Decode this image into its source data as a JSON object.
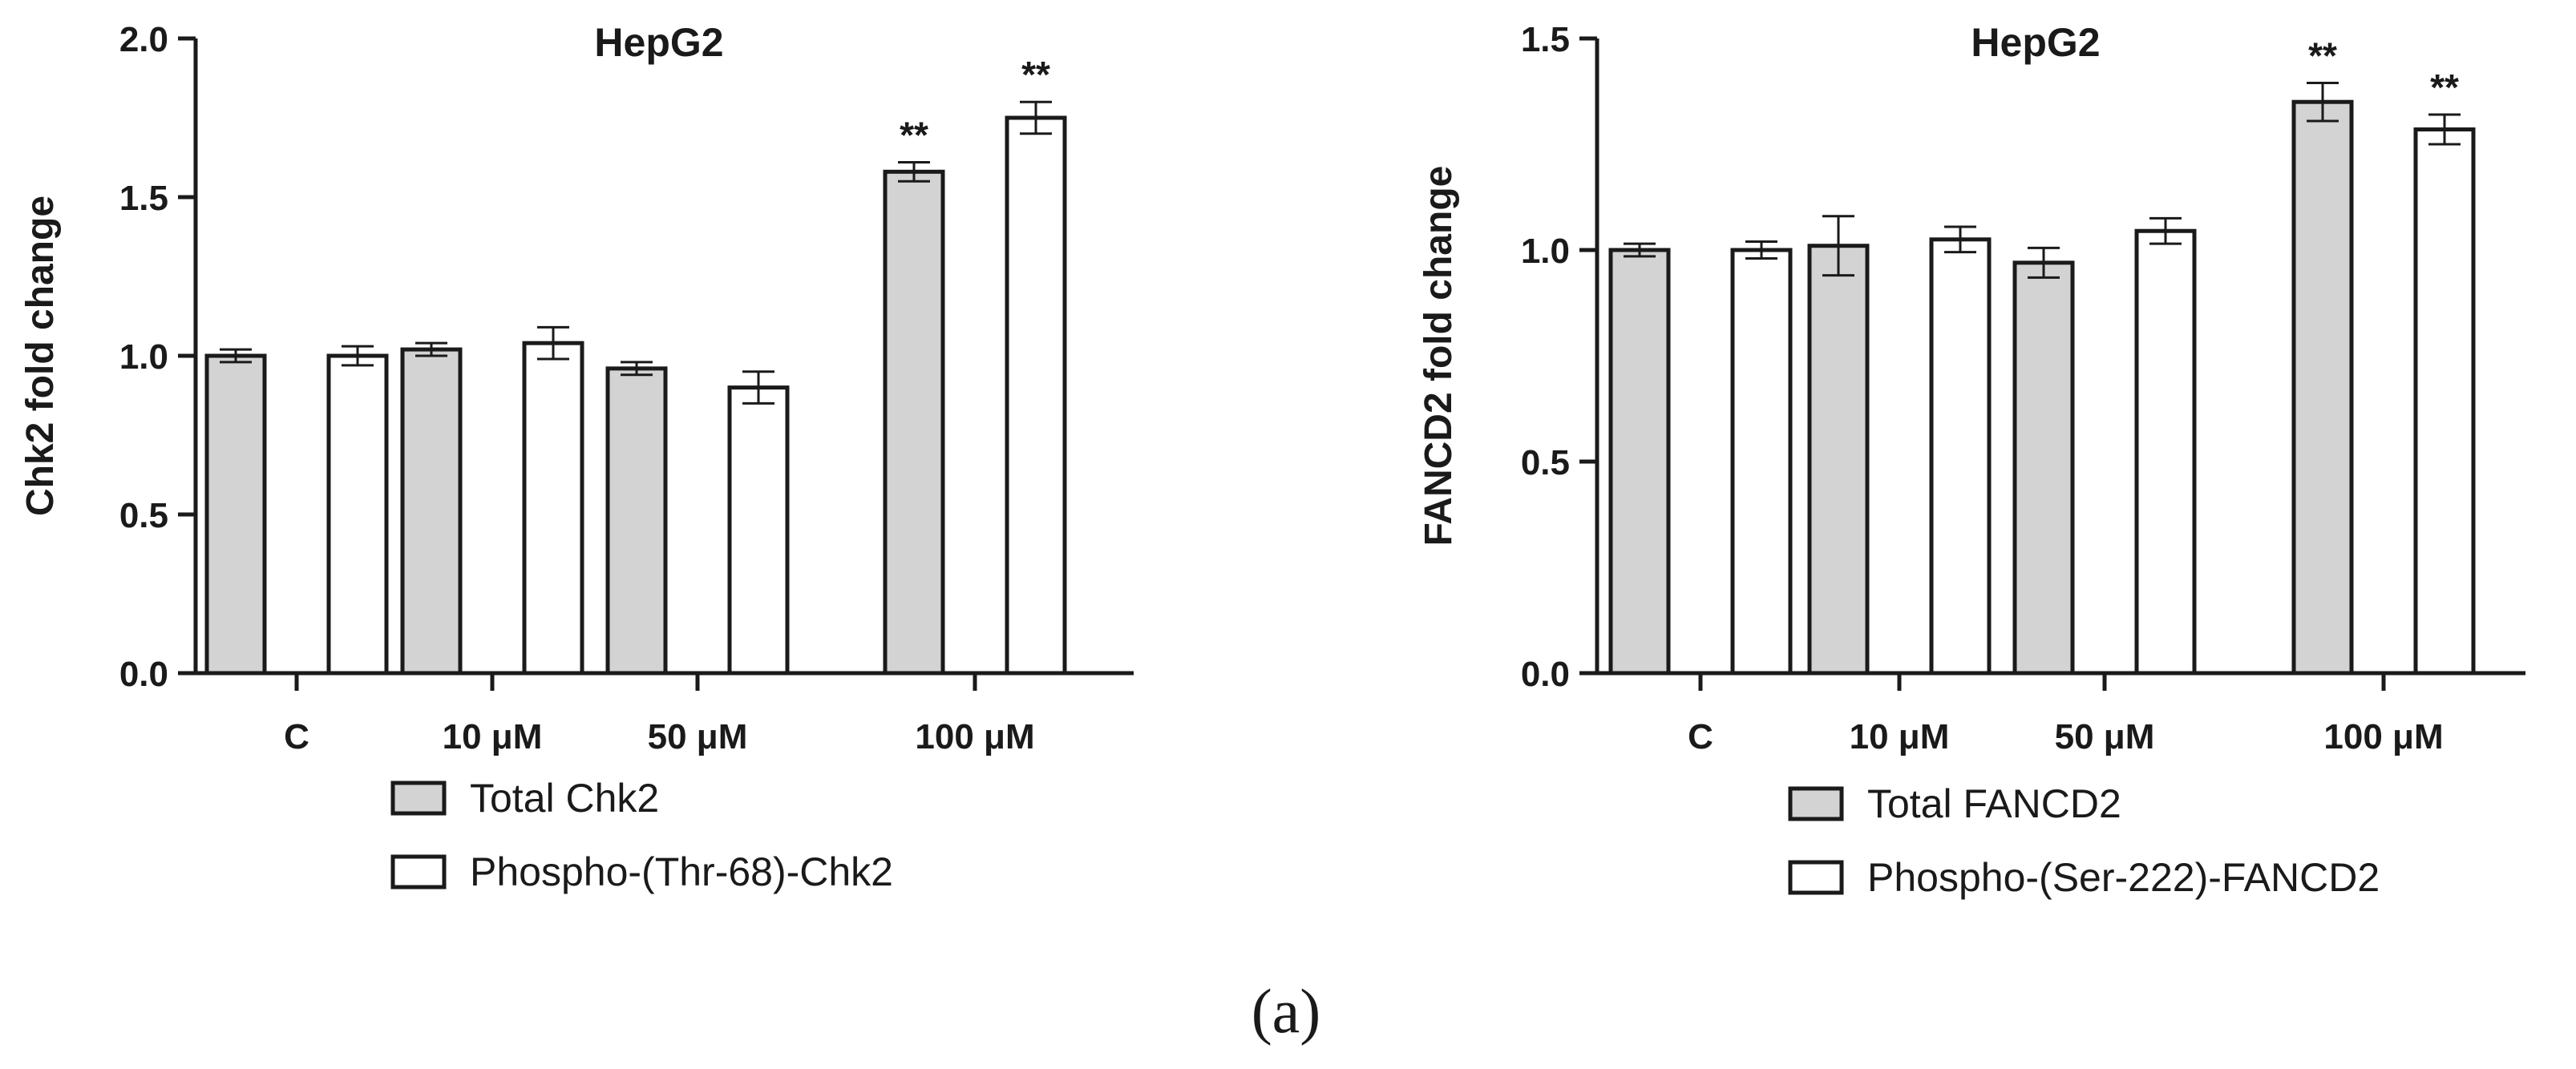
{
  "caption": "(a)",
  "colors": {
    "total": "#d3d3d3",
    "phospho": "#ffffff",
    "stroke": "#1a1a1a"
  },
  "chart_data": [
    {
      "type": "bar",
      "title": "HepG2",
      "xlabel": "",
      "ylabel": "Chk2 fold change",
      "ylim": [
        0,
        2.0
      ],
      "yticks": [
        0.0,
        0.5,
        1.0,
        1.5,
        2.0
      ],
      "ytick_labels": [
        "0.0",
        "0.5",
        "1.0",
        "1.5",
        "2.0"
      ],
      "categories": [
        "C",
        "10 μM",
        "50 μM",
        "100 μM"
      ],
      "series": [
        {
          "name": "Total Chk2",
          "values": [
            1.0,
            1.02,
            0.96,
            1.58
          ],
          "errors": [
            0.02,
            0.02,
            0.02,
            0.03
          ],
          "sig": [
            "",
            "",
            "",
            "**"
          ]
        },
        {
          "name": "Phospho-(Thr-68)-Chk2",
          "values": [
            1.0,
            1.04,
            0.9,
            1.75
          ],
          "errors": [
            0.03,
            0.05,
            0.05,
            0.05
          ],
          "sig": [
            "",
            "",
            "",
            "**"
          ]
        }
      ],
      "legend": "bottom"
    },
    {
      "type": "bar",
      "title": "HepG2",
      "xlabel": "",
      "ylabel": "FANCD2  fold change",
      "ylim": [
        0,
        1.5
      ],
      "yticks": [
        0.0,
        0.5,
        1.0,
        1.5
      ],
      "ytick_labels": [
        "0.0",
        "0.5",
        "1.0",
        "1.5"
      ],
      "categories": [
        "C",
        "10 μM",
        "50 μM",
        "100 μM"
      ],
      "series": [
        {
          "name": "Total FANCD2",
          "values": [
            1.0,
            1.01,
            0.97,
            1.35
          ],
          "errors": [
            0.015,
            0.07,
            0.035,
            0.045
          ],
          "sig": [
            "",
            "",
            "",
            "**"
          ]
        },
        {
          "name": "Phospho-(Ser-222)-FANCD2",
          "values": [
            1.0,
            1.025,
            1.045,
            1.285
          ],
          "errors": [
            0.02,
            0.03,
            0.03,
            0.035
          ],
          "sig": [
            "",
            "",
            "",
            "**"
          ]
        }
      ],
      "legend": "bottom"
    }
  ]
}
